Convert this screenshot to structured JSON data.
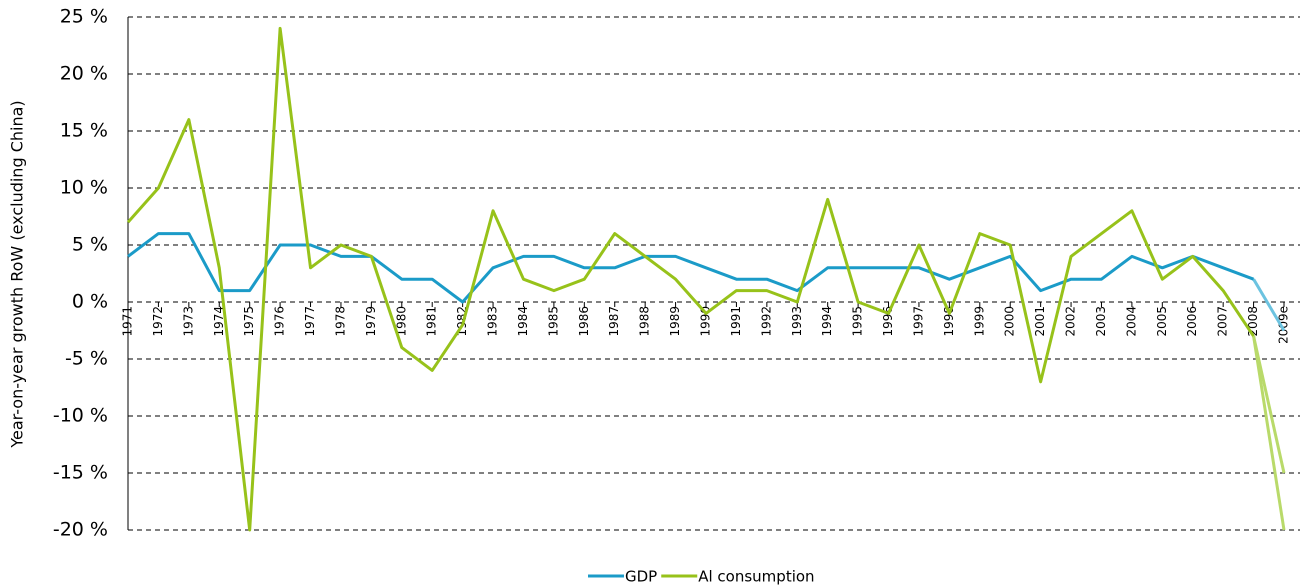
{
  "chart_data": {
    "type": "line",
    "y_label": "Year-on-year growth RoW (excluding China)",
    "categories": [
      "1971",
      "1972",
      "1973",
      "1974",
      "1975",
      "1976",
      "1977",
      "1978",
      "1979",
      "1980",
      "1981",
      "1982",
      "1983",
      "1984",
      "1985",
      "1986",
      "1987",
      "1988",
      "1989",
      "1990",
      "1991",
      "1992",
      "1993",
      "1994",
      "1995",
      "1996",
      "1997",
      "1998",
      "1999",
      "2000",
      "2001",
      "2002",
      "2003",
      "2004",
      "2005",
      "2006",
      "2007",
      "2008",
      "2009e"
    ],
    "series": [
      {
        "name": "GDP",
        "color": "#1b9bc8",
        "estimate_color": "#6cc3e0",
        "values": [
          4,
          6,
          6,
          1,
          1,
          5,
          5,
          4,
          4,
          2,
          2,
          0,
          3,
          4,
          4,
          3,
          3,
          4,
          4,
          3,
          2,
          2,
          1,
          3,
          3,
          3,
          3,
          2,
          3,
          4,
          1,
          2,
          2,
          4,
          3,
          4,
          3,
          2,
          -2.5
        ]
      },
      {
        "name": "Al consumption",
        "color": "#97c21a",
        "estimate_color": "#b9da6a",
        "values": [
          7,
          10,
          16,
          3,
          -20,
          24,
          3,
          5,
          4,
          -4,
          -6,
          -2,
          8,
          2,
          1,
          2,
          6,
          4,
          2,
          -1,
          1,
          1,
          0,
          9,
          0,
          -1,
          5,
          -1,
          6,
          5,
          -7,
          4,
          6,
          8,
          2,
          4,
          1,
          -3,
          -20
        ]
      },
      {
        "color": "#b9da6a",
        "values": [
          null,
          null,
          null,
          null,
          null,
          null,
          null,
          null,
          null,
          null,
          null,
          null,
          null,
          null,
          null,
          null,
          null,
          null,
          null,
          null,
          null,
          null,
          null,
          null,
          null,
          null,
          null,
          null,
          null,
          null,
          null,
          null,
          null,
          null,
          null,
          null,
          null,
          -3,
          -15
        ]
      }
    ],
    "ylim": [
      -20,
      25
    ],
    "yticks": [
      {
        "value": -20,
        "label": "-20 %"
      },
      {
        "value": -15,
        "label": "-15 %"
      },
      {
        "value": -10,
        "label": "-10 %"
      },
      {
        "value": -5,
        "label": "-5 %"
      },
      {
        "value": 0,
        "label": "0 %"
      },
      {
        "value": 5,
        "label": "5 %"
      },
      {
        "value": 10,
        "label": "10 %"
      },
      {
        "value": 15,
        "label": "15 %"
      },
      {
        "value": 20,
        "label": "20 %"
      },
      {
        "value": 25,
        "label": "25 %"
      }
    ],
    "grid": true,
    "legend": "bottom"
  }
}
